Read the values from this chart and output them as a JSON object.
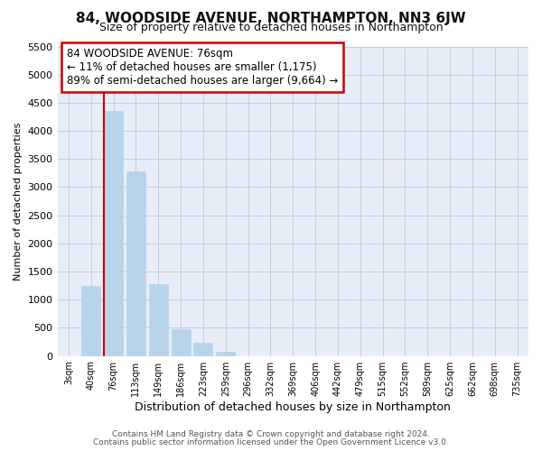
{
  "title": "84, WOODSIDE AVENUE, NORTHAMPTON, NN3 6JW",
  "subtitle": "Size of property relative to detached houses in Northampton",
  "xlabel": "Distribution of detached houses by size in Northampton",
  "ylabel": "Number of detached properties",
  "bar_labels": [
    "3sqm",
    "40sqm",
    "76sqm",
    "113sqm",
    "149sqm",
    "186sqm",
    "223sqm",
    "259sqm",
    "296sqm",
    "332sqm",
    "369sqm",
    "406sqm",
    "442sqm",
    "479sqm",
    "515sqm",
    "552sqm",
    "589sqm",
    "625sqm",
    "662sqm",
    "698sqm",
    "735sqm"
  ],
  "bar_values": [
    0,
    1250,
    4350,
    3280,
    1280,
    480,
    240,
    80,
    0,
    0,
    0,
    0,
    0,
    0,
    0,
    0,
    0,
    0,
    0,
    0,
    0
  ],
  "bar_color": "#b8d4ea",
  "vline_index": 2,
  "vline_color": "#cc0000",
  "annotation_line1": "84 WOODSIDE AVENUE: 76sqm",
  "annotation_line2": "← 11% of detached houses are smaller (1,175)",
  "annotation_line3": "89% of semi-detached houses are larger (9,664) →",
  "annotation_box_color": "#ffffff",
  "annotation_box_edge": "#cc0000",
  "ylim": [
    0,
    5500
  ],
  "yticks": [
    0,
    500,
    1000,
    1500,
    2000,
    2500,
    3000,
    3500,
    4000,
    4500,
    5000,
    5500
  ],
  "footer1": "Contains HM Land Registry data © Crown copyright and database right 2024.",
  "footer2": "Contains public sector information licensed under the Open Government Licence v3.0.",
  "bg_color": "#ffffff",
  "plot_bg_color": "#e8eef8",
  "grid_color": "#c0cce0",
  "title_fontsize": 11,
  "subtitle_fontsize": 9
}
